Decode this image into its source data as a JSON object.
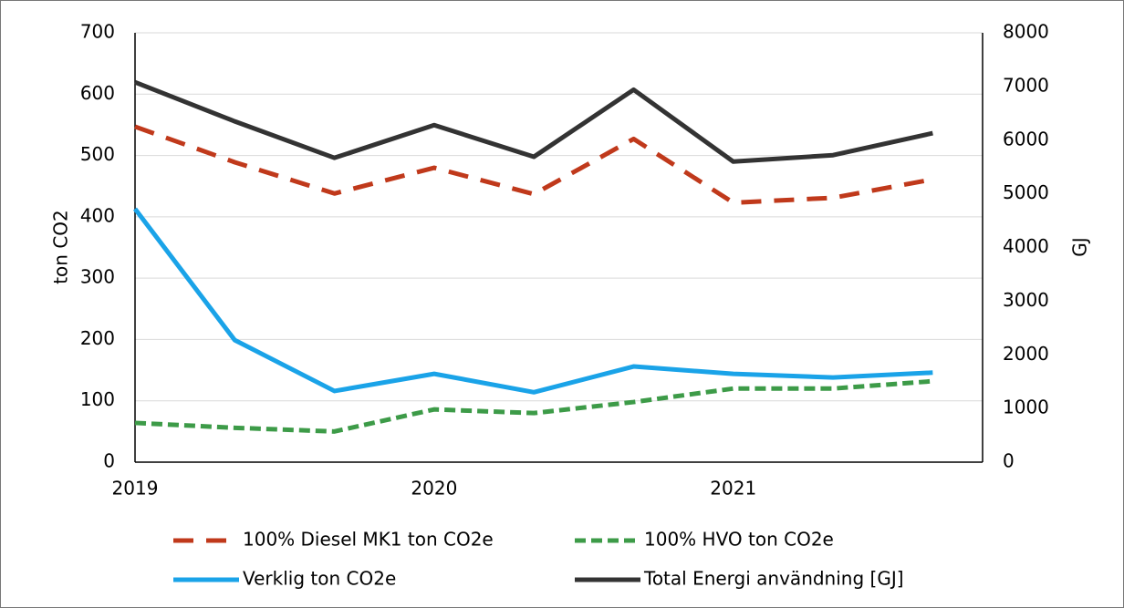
{
  "chart_data": {
    "type": "line",
    "categories": [
      "2019",
      null,
      null,
      "2020",
      null,
      null,
      "2021",
      null,
      null
    ],
    "y_label": "ton CO2",
    "y2_label": "GJ",
    "ylim": [
      0,
      700
    ],
    "yticks": [
      0,
      100,
      200,
      300,
      400,
      500,
      600,
      700
    ],
    "y2lim": [
      0,
      8000
    ],
    "y2ticks": [
      0,
      1000,
      2000,
      3000,
      4000,
      5000,
      6000,
      7000,
      8000
    ],
    "grid": true,
    "series": [
      {
        "name": "100% Diesel MK1 ton CO2e",
        "color": "#c0391b",
        "dash": "dashed",
        "values": [
          547,
          489,
          438,
          480,
          437,
          527,
          423,
          431,
          461
        ]
      },
      {
        "name": "100% HVO ton CO2e",
        "color": "#3d9b48",
        "dash": "dotted",
        "values": [
          64,
          56,
          50,
          86,
          80,
          98,
          120,
          120,
          132
        ]
      },
      {
        "name": "Verklig ton CO2e",
        "color": "#1aa3e8",
        "dash": "solid",
        "values": [
          413,
          199,
          116,
          144,
          114,
          156,
          144,
          138,
          146
        ]
      },
      {
        "name": "Total Energi användning [GJ]",
        "color": "#333333",
        "dash": "solid",
        "axis": "y2",
        "values": [
          7080,
          6350,
          5670,
          6280,
          5690,
          6940,
          5600,
          5720,
          6130
        ]
      }
    ]
  }
}
